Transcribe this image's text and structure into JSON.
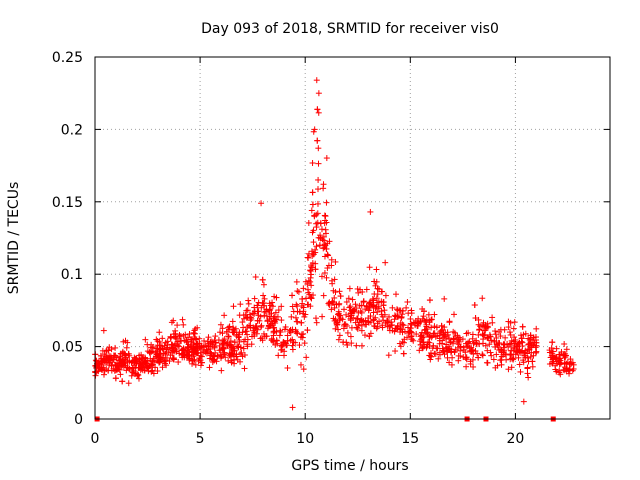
{
  "chart_data": {
    "type": "scatter",
    "title": "Day 093 of 2018, SRMTID for receiver vis0",
    "xlabel": "GPS time / hours",
    "ylabel": "SRMTID / TECUs",
    "xlim": [
      0,
      24.5
    ],
    "ylim": [
      0,
      0.25
    ],
    "xticks": [
      0,
      5,
      10,
      15,
      20
    ],
    "xtick_labels": [
      "0",
      "5",
      "10",
      "15",
      "20"
    ],
    "yticks": [
      0,
      0.05,
      0.1,
      0.15,
      0.2,
      0.25
    ],
    "ytick_labels": [
      "0",
      "0.05",
      "0.1",
      "0.15",
      "0.2",
      "0.25"
    ],
    "grid": true,
    "marker": "+",
    "color": "#ff0000",
    "series_name": "vis0",
    "zero_markers_x": [
      0.1,
      17.7,
      18.6,
      21.8
    ],
    "points_note": "approximately 2000 points, values mostly 0.02 to 0.08 TECU with spikes up to about 0.234 near 10.6 h",
    "envelope": [
      {
        "t": 0.0,
        "mean": 0.038,
        "spread": 0.012
      },
      {
        "t": 1.0,
        "mean": 0.04,
        "spread": 0.014
      },
      {
        "t": 2.0,
        "mean": 0.036,
        "spread": 0.012
      },
      {
        "t": 3.0,
        "mean": 0.045,
        "spread": 0.014
      },
      {
        "t": 4.0,
        "mean": 0.05,
        "spread": 0.016
      },
      {
        "t": 5.0,
        "mean": 0.048,
        "spread": 0.016
      },
      {
        "t": 6.0,
        "mean": 0.05,
        "spread": 0.018
      },
      {
        "t": 7.0,
        "mean": 0.055,
        "spread": 0.02
      },
      {
        "t": 8.0,
        "mean": 0.075,
        "spread": 0.025
      },
      {
        "t": 9.0,
        "mean": 0.055,
        "spread": 0.018
      },
      {
        "t": 10.0,
        "mean": 0.075,
        "spread": 0.04
      },
      {
        "t": 10.6,
        "mean": 0.14,
        "spread": 0.07
      },
      {
        "t": 11.5,
        "mean": 0.07,
        "spread": 0.025
      },
      {
        "t": 12.5,
        "mean": 0.07,
        "spread": 0.022
      },
      {
        "t": 13.5,
        "mean": 0.075,
        "spread": 0.022
      },
      {
        "t": 14.5,
        "mean": 0.065,
        "spread": 0.02
      },
      {
        "t": 15.5,
        "mean": 0.06,
        "spread": 0.02
      },
      {
        "t": 16.5,
        "mean": 0.055,
        "spread": 0.018
      },
      {
        "t": 17.5,
        "mean": 0.05,
        "spread": 0.016
      },
      {
        "t": 18.5,
        "mean": 0.055,
        "spread": 0.02
      },
      {
        "t": 19.5,
        "mean": 0.05,
        "spread": 0.016
      },
      {
        "t": 20.5,
        "mean": 0.05,
        "spread": 0.018
      },
      {
        "t": 21.5,
        "mean": 0.045,
        "spread": 0.015
      },
      {
        "t": 22.0,
        "mean": 0.04,
        "spread": 0.012
      },
      {
        "t": 22.8,
        "mean": 0.038,
        "spread": 0.01
      }
    ],
    "data_extent_hours": [
      0.0,
      22.8
    ],
    "gaps_hours": [
      [
        21.0,
        21.6
      ]
    ],
    "notable_points": [
      {
        "x": 10.55,
        "y": 0.234
      },
      {
        "x": 10.65,
        "y": 0.225
      },
      {
        "x": 10.45,
        "y": 0.2
      },
      {
        "x": 7.9,
        "y": 0.149
      },
      {
        "x": 13.1,
        "y": 0.143
      },
      {
        "x": 9.4,
        "y": 0.008
      },
      {
        "x": 20.4,
        "y": 0.012
      }
    ]
  }
}
